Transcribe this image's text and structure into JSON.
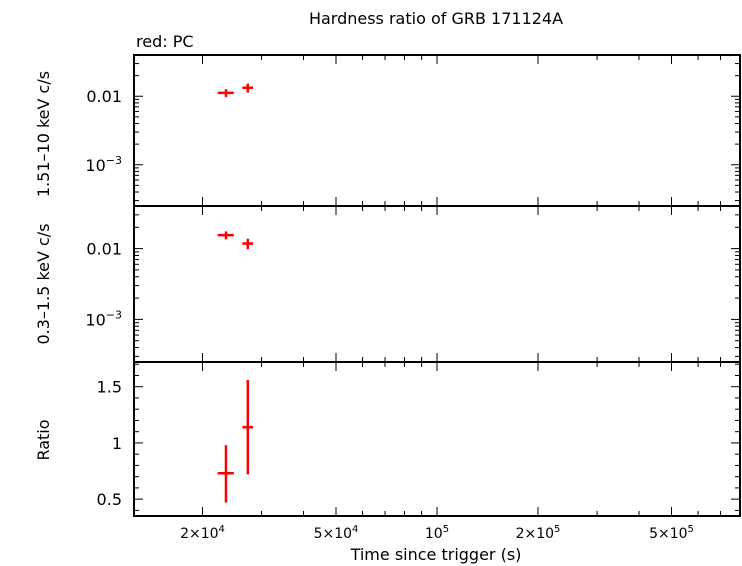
{
  "chart_data": {
    "type": "scatter",
    "title": "Hardness ratio of GRB 171124A",
    "legend_note": "red: PC",
    "xlabel": "Time since trigger (s)",
    "x_scale": "log",
    "xlim": [
      12500,
      800000
    ],
    "x_ticks": [
      {
        "value": 20000,
        "label": "2×10",
        "exp": "4"
      },
      {
        "value": 50000,
        "label": "5×10",
        "exp": "4"
      },
      {
        "value": 100000,
        "label": "10",
        "exp": "5"
      },
      {
        "value": 200000,
        "label": "2×10",
        "exp": "5"
      },
      {
        "value": 500000,
        "label": "5×10",
        "exp": "5"
      }
    ],
    "series_color": "#ff0000",
    "panels": [
      {
        "ylabel": "1.51–10 keV c/s",
        "y_scale": "log",
        "ylim": [
          0.00025,
          0.04
        ],
        "y_ticks": [
          {
            "value": 0.01,
            "label": "0.01",
            "exp": ""
          },
          {
            "value": 0.001,
            "label": "10",
            "exp": "−3"
          }
        ],
        "points": [
          {
            "x": 23500,
            "xerr": [
              1300,
              1300
            ],
            "y": 0.0112,
            "yerr": [
              0.0015,
              0.0015
            ]
          },
          {
            "x": 27300,
            "xerr": [
              1000,
              1000
            ],
            "y": 0.0133,
            "yerr": [
              0.002,
              0.002
            ]
          }
        ]
      },
      {
        "ylabel": "0.3–1.5 keV c/s",
        "y_scale": "log",
        "ylim": [
          0.00025,
          0.04
        ],
        "y_ticks": [
          {
            "value": 0.01,
            "label": "0.01",
            "exp": ""
          },
          {
            "value": 0.001,
            "label": "10",
            "exp": "−3"
          }
        ],
        "points": [
          {
            "x": 23500,
            "xerr": [
              1300,
              1300
            ],
            "y": 0.0155,
            "yerr": [
              0.002,
              0.002
            ]
          },
          {
            "x": 27300,
            "xerr": [
              1000,
              1000
            ],
            "y": 0.0118,
            "yerr": [
              0.002,
              0.002
            ]
          }
        ]
      },
      {
        "ylabel": "Ratio",
        "y_scale": "linear",
        "ylim": [
          0.35,
          1.72
        ],
        "y_ticks": [
          {
            "value": 0.5,
            "label": "0.5",
            "exp": ""
          },
          {
            "value": 1,
            "label": "1",
            "exp": ""
          },
          {
            "value": 1.5,
            "label": "1.5",
            "exp": ""
          }
        ],
        "points": [
          {
            "x": 23500,
            "xerr": [
              1300,
              1300
            ],
            "y": 0.73,
            "yerr": [
              0.26,
              0.25
            ]
          },
          {
            "x": 27300,
            "xerr": [
              1000,
              1000
            ],
            "y": 1.14,
            "yerr": [
              0.42,
              0.42
            ]
          }
        ]
      }
    ]
  }
}
